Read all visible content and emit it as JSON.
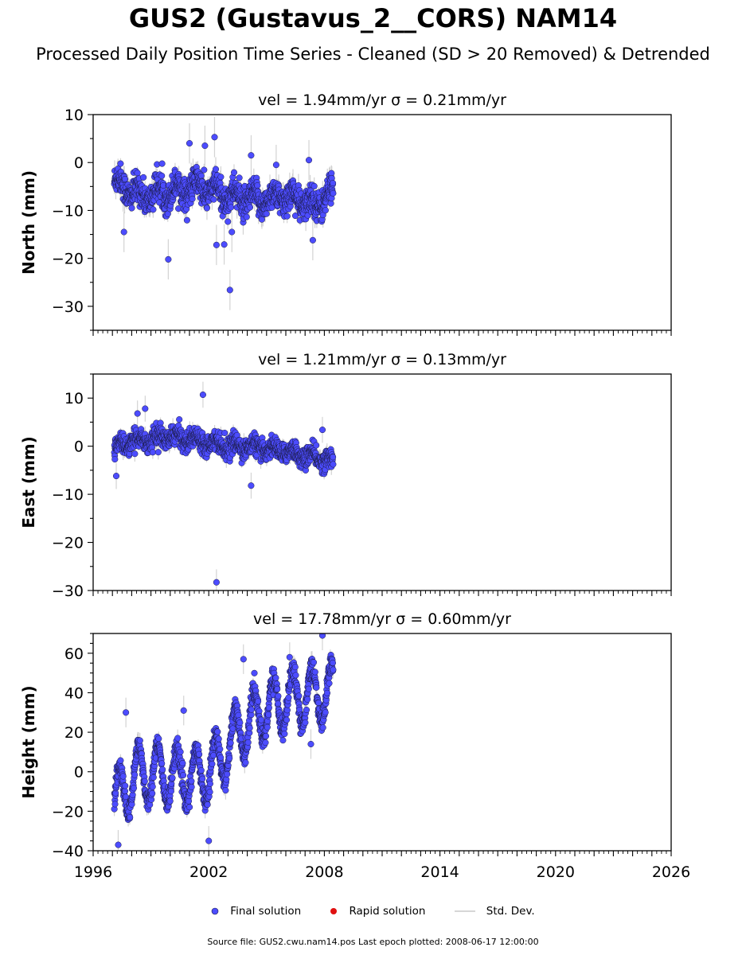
{
  "header": {
    "title": "GUS2 (Gustavus_2__CORS) NAM14",
    "subtitle": "Processed Daily Position Time Series - Cleaned (SD > 20 Removed) & Detrended"
  },
  "legend": {
    "final": "Final solution",
    "rapid": "Rapid solution",
    "std": "Std. Dev."
  },
  "footer": {
    "source": "Source file: GUS2.cwu.nam14.pos  Last epoch plotted: 2008-06-17 12:00:00"
  },
  "colors": {
    "final": "#4c4cff",
    "final_edge": "#1a1a40",
    "rapid": "#e01010",
    "std": "#c8c8c8"
  },
  "chart_data": [
    {
      "type": "scatter",
      "panel": "north",
      "title": "vel = 1.94mm/yr   σ = 0.21mm/yr",
      "ylabel": "North (mm)",
      "xlim": [
        1996,
        2026
      ],
      "ylim": [
        -35,
        10
      ],
      "yticks": [
        10,
        0,
        -10,
        -20,
        -30
      ],
      "data_range": [
        1997.1,
        2008.46
      ],
      "trend": [
        [
          1997.1,
          -4
        ],
        [
          1998.5,
          -7
        ],
        [
          2000.0,
          -6
        ],
        [
          2001.5,
          -5
        ],
        [
          2003.0,
          -7
        ],
        [
          2004.5,
          -8
        ],
        [
          2006.0,
          -7
        ],
        [
          2007.5,
          -9
        ],
        [
          2008.46,
          -6
        ]
      ],
      "spread": 2.8,
      "seasonal_amp": 1.5,
      "outliers": [
        [
          1997.6,
          -14.5
        ],
        [
          1999.9,
          -20.2
        ],
        [
          2001.0,
          4.0
        ],
        [
          2001.8,
          3.5
        ],
        [
          2002.3,
          5.3
        ],
        [
          2002.4,
          -17.2
        ],
        [
          2002.8,
          -17.1
        ],
        [
          2003.1,
          -26.6
        ],
        [
          2003.2,
          -14.5
        ],
        [
          2004.2,
          1.5
        ],
        [
          2005.5,
          -0.5
        ],
        [
          2007.2,
          0.5
        ],
        [
          2007.4,
          -16.2
        ]
      ]
    },
    {
      "type": "scatter",
      "panel": "east",
      "title": "vel = 1.21mm/yr   σ = 0.13mm/yr",
      "ylabel": "East (mm)",
      "xlim": [
        1996,
        2026
      ],
      "ylim": [
        -30,
        15
      ],
      "yticks": [
        10,
        0,
        -10,
        -20,
        -30
      ],
      "data_range": [
        1997.1,
        2008.46
      ],
      "trend": [
        [
          1997.1,
          -0.5
        ],
        [
          1998.0,
          1
        ],
        [
          1999.0,
          1.5
        ],
        [
          2000.0,
          2
        ],
        [
          2001.0,
          1.5
        ],
        [
          2002.0,
          1
        ],
        [
          2003.0,
          0
        ],
        [
          2004.0,
          0
        ],
        [
          2005.0,
          -0.5
        ],
        [
          2006.0,
          -1
        ],
        [
          2007.0,
          -2
        ],
        [
          2008.46,
          -3
        ]
      ],
      "spread": 1.8,
      "seasonal_amp": 0.8,
      "outliers": [
        [
          1997.2,
          -6.2
        ],
        [
          1998.3,
          6.8
        ],
        [
          1998.7,
          7.8
        ],
        [
          2001.7,
          10.7
        ],
        [
          2002.4,
          -28.3
        ],
        [
          2004.2,
          -8.2
        ],
        [
          2007.9,
          3.4
        ]
      ]
    },
    {
      "type": "scatter",
      "panel": "height",
      "title": "vel = 17.78mm/yr   σ = 0.60mm/yr",
      "ylabel": "Height (mm)",
      "xlim": [
        1996,
        2026
      ],
      "ylim": [
        -40,
        70
      ],
      "yticks": [
        60,
        40,
        20,
        0,
        -20,
        -40
      ],
      "xticks": [
        1996,
        2002,
        2008,
        2014,
        2020,
        2026
      ],
      "data_range": [
        1997.1,
        2008.46
      ],
      "trend": [
        [
          1997.1,
          -15
        ],
        [
          1998.5,
          0
        ],
        [
          2000.0,
          -2
        ],
        [
          2001.5,
          -3
        ],
        [
          2002.5,
          5
        ],
        [
          2003.5,
          20
        ],
        [
          2005.0,
          32
        ],
        [
          2006.5,
          38
        ],
        [
          2008.46,
          40
        ]
      ],
      "spread": 5,
      "seasonal_amp": 14,
      "outliers": [
        [
          1997.3,
          -37
        ],
        [
          1997.7,
          30
        ],
        [
          2000.7,
          31
        ],
        [
          2002.0,
          -35
        ],
        [
          2003.8,
          57
        ],
        [
          2006.2,
          58
        ],
        [
          2007.3,
          14
        ],
        [
          2007.9,
          69
        ]
      ]
    }
  ]
}
